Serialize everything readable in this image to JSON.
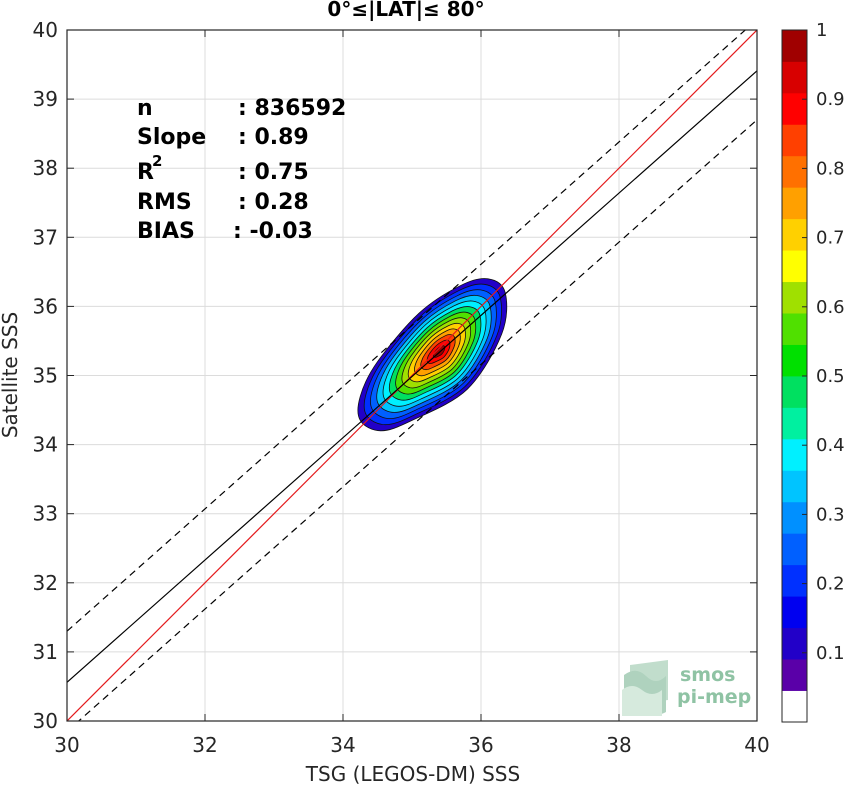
{
  "chart_data": {
    "type": "heatmap",
    "title": "0°≤|LAT|≤ 80°",
    "xlabel": "TSG (LEGOS-DM) SSS",
    "ylabel": "Satellite SSS",
    "xlim": [
      30,
      40
    ],
    "ylim": [
      30,
      40
    ],
    "xticks": [
      30,
      32,
      34,
      36,
      38,
      40
    ],
    "yticks": [
      30,
      31,
      32,
      33,
      34,
      35,
      36,
      37,
      38,
      39,
      40
    ],
    "grid": true,
    "density": {
      "center": [
        35.4,
        35.35
      ],
      "levels": [
        0.05,
        0.1,
        0.2,
        0.3,
        0.4,
        0.5,
        0.6,
        0.7,
        0.8,
        0.9,
        0.95
      ],
      "outer_contour": [
        [
          34.25,
          34.35
        ],
        [
          34.55,
          34.2
        ],
        [
          35.0,
          34.35
        ],
        [
          35.8,
          34.8
        ],
        [
          36.3,
          35.6
        ],
        [
          36.35,
          36.2
        ],
        [
          36.1,
          36.4
        ],
        [
          35.7,
          36.3
        ],
        [
          35.1,
          35.9
        ],
        [
          34.5,
          35.2
        ],
        [
          34.25,
          34.7
        ]
      ]
    },
    "lines": [
      {
        "name": "1:1",
        "color": "#e41a1c",
        "style": "solid",
        "x": [
          30,
          40
        ],
        "y": [
          30,
          40
        ]
      },
      {
        "name": "fit",
        "color": "#000000",
        "style": "solid",
        "x": [
          30,
          40
        ],
        "y": [
          30.56,
          39.41
        ]
      },
      {
        "name": "upper",
        "color": "#000000",
        "style": "dashed",
        "x": [
          30,
          40
        ],
        "y": [
          31.3,
          40.15
        ]
      },
      {
        "name": "lower",
        "color": "#000000",
        "style": "dashed",
        "x": [
          30,
          40
        ],
        "y": [
          29.85,
          38.7
        ]
      }
    ],
    "stats": {
      "n_label": "n",
      "n_value": ": 836592",
      "slope_label": "Slope",
      "slope_value": ": 0.89",
      "r2_label": "R",
      "r2_sup": "2",
      "r2_value": ": 0.75",
      "rms_label": "RMS",
      "rms_value": ": 0.28",
      "bias_label": "BIAS",
      "bias_value": ": -0.03"
    },
    "colorbar": {
      "ticks": [
        "0.1",
        "0.2",
        "0.3",
        "0.4",
        "0.5",
        "0.6",
        "0.7",
        "0.8",
        "0.9",
        "1"
      ],
      "min": 0,
      "max": 1,
      "colors": [
        "#ffffff",
        "#5a00a8",
        "#2200c8",
        "#0000f0",
        "#0030ff",
        "#0060ff",
        "#0090ff",
        "#00c4ff",
        "#00f0ff",
        "#00f0a0",
        "#00e060",
        "#00e000",
        "#50e000",
        "#a0e000",
        "#ffff00",
        "#ffd000",
        "#ffa000",
        "#ff7000",
        "#ff4000",
        "#ff0000",
        "#d80000",
        "#a00000"
      ]
    }
  },
  "logo": {
    "line1": "smos",
    "line2": "pi-mep"
  }
}
